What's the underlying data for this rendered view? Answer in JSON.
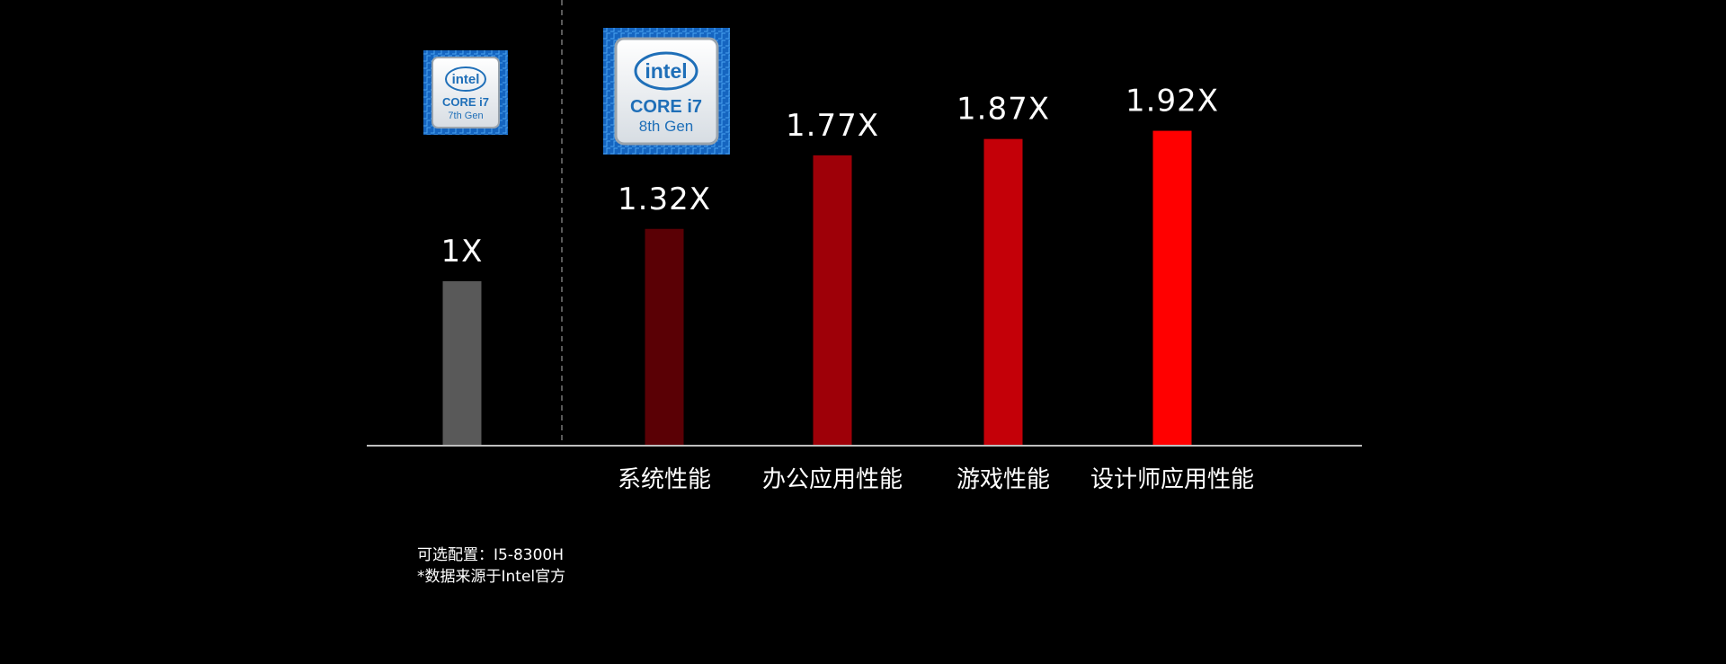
{
  "chart_data": {
    "type": "bar",
    "categories": [
      "",
      "系统性能",
      "办公应用性能",
      "游戏性能",
      "设计师应用性能"
    ],
    "values": [
      1,
      1.32,
      1.77,
      1.87,
      1.92
    ],
    "value_labels": [
      "1X",
      "1.32X",
      "1.77X",
      "1.87X",
      "1.92X"
    ],
    "bar_colors": [
      "#595959",
      "#5a0005",
      "#9e0008",
      "#c40008",
      "#ff0000"
    ],
    "ylim": [
      0,
      2.2
    ],
    "grid": false,
    "title": "",
    "xlabel": "",
    "ylabel": ""
  },
  "badges": {
    "gen7": {
      "brand": "intel",
      "line1": "CORE i7",
      "line2": "7th Gen",
      "icon": "intel-core-i7-7th-gen-badge"
    },
    "gen8": {
      "brand": "intel",
      "line1": "CORE i7",
      "line2": "8th Gen",
      "icon": "intel-core-i7-8th-gen-badge"
    }
  },
  "footnotes": {
    "config": "可选配置：I5-8300H",
    "source": "*数据来源于Intel官方"
  },
  "colors": {
    "background": "#000000",
    "axis": "#bfbfbf",
    "divider": "#777777"
  }
}
